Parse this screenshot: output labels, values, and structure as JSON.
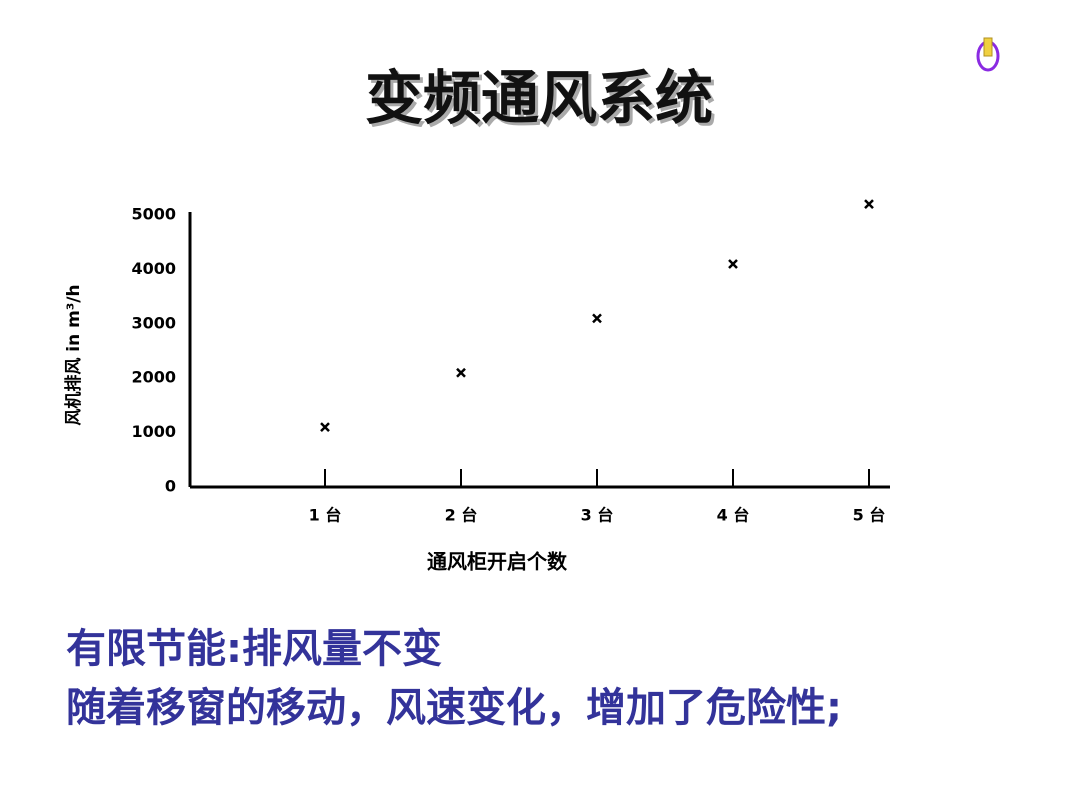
{
  "chart_data": {
    "type": "scatter",
    "title": "变频通风系统",
    "y_label": "风机排风 in m³/h",
    "x_label": "通风柜开启个数",
    "categories": [
      "1 台",
      "2 台",
      "3 台",
      "4 台",
      "5 台"
    ],
    "values": [
      1100,
      2100,
      3100,
      4100,
      5200
    ],
    "color": "#000000",
    "ylim": [
      0,
      5000
    ],
    "yticks": [
      0,
      1000,
      2000,
      3000,
      4000,
      5000
    ],
    "grid": false,
    "annotations": [
      "有限节能:排风量不变",
      "随着移窗的移动，风速变化，增加了危险性;"
    ]
  }
}
